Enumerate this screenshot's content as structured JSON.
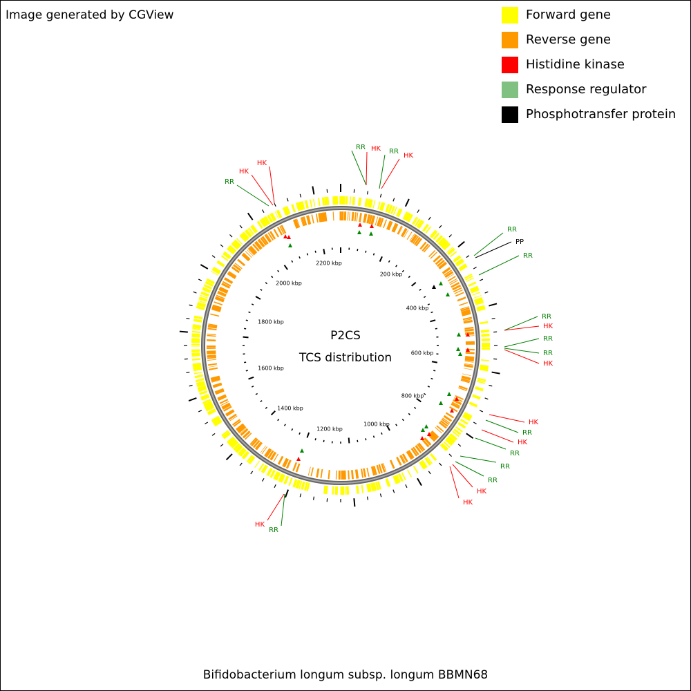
{
  "header": {
    "title": "Image generated by CGView"
  },
  "legend": [
    {
      "label": "Forward gene",
      "color": "#ffff00"
    },
    {
      "label": "Reverse gene",
      "color": "#ff9900"
    },
    {
      "label": "Histidine kinase",
      "color": "#ff0000"
    },
    {
      "label": "Response regulator",
      "color": "#80c080"
    },
    {
      "label": "Phosphotransfer protein",
      "color": "#000000"
    }
  ],
  "center": {
    "title": "P2CS",
    "subtitle": "TCS distribution"
  },
  "ticks": [
    "200 kbp",
    "400 kbp",
    "600 kbp",
    "800 kbp",
    "1000 kbp",
    "1200 kbp",
    "1400 kbp",
    "1600 kbp",
    "1800 kbp",
    "2000 kbp",
    "2200 kbp"
  ],
  "features": [
    {
      "label": "RR",
      "color": "#008000"
    },
    {
      "label": "HK",
      "color": "#ff0000"
    },
    {
      "label": "RR",
      "color": "#008000"
    },
    {
      "label": "HK",
      "color": "#ff0000"
    },
    {
      "label": "RR",
      "color": "#008000"
    },
    {
      "label": "HK",
      "color": "#ff0000"
    },
    {
      "label": "HK",
      "color": "#ff0000"
    },
    {
      "label": "RR",
      "color": "#008000"
    },
    {
      "label": "PP",
      "color": "#000000"
    },
    {
      "label": "RR",
      "color": "#008000"
    },
    {
      "label": "RR",
      "color": "#008000"
    },
    {
      "label": "HK",
      "color": "#ff0000"
    },
    {
      "label": "RR",
      "color": "#008000"
    },
    {
      "label": "RR",
      "color": "#008000"
    },
    {
      "label": "HK",
      "color": "#ff0000"
    },
    {
      "label": "HK",
      "color": "#ff0000"
    },
    {
      "label": "RR",
      "color": "#008000"
    },
    {
      "label": "HK",
      "color": "#ff0000"
    },
    {
      "label": "RR",
      "color": "#008000"
    },
    {
      "label": "RR",
      "color": "#008000"
    },
    {
      "label": "RR",
      "color": "#008000"
    },
    {
      "label": "HK",
      "color": "#ff0000"
    },
    {
      "label": "HK",
      "color": "#ff0000"
    },
    {
      "label": "HK",
      "color": "#ff0000"
    },
    {
      "label": "RR",
      "color": "#008000"
    }
  ],
  "footer": {
    "title": "Bifidobacterium longum subsp. longum BBMN68"
  }
}
